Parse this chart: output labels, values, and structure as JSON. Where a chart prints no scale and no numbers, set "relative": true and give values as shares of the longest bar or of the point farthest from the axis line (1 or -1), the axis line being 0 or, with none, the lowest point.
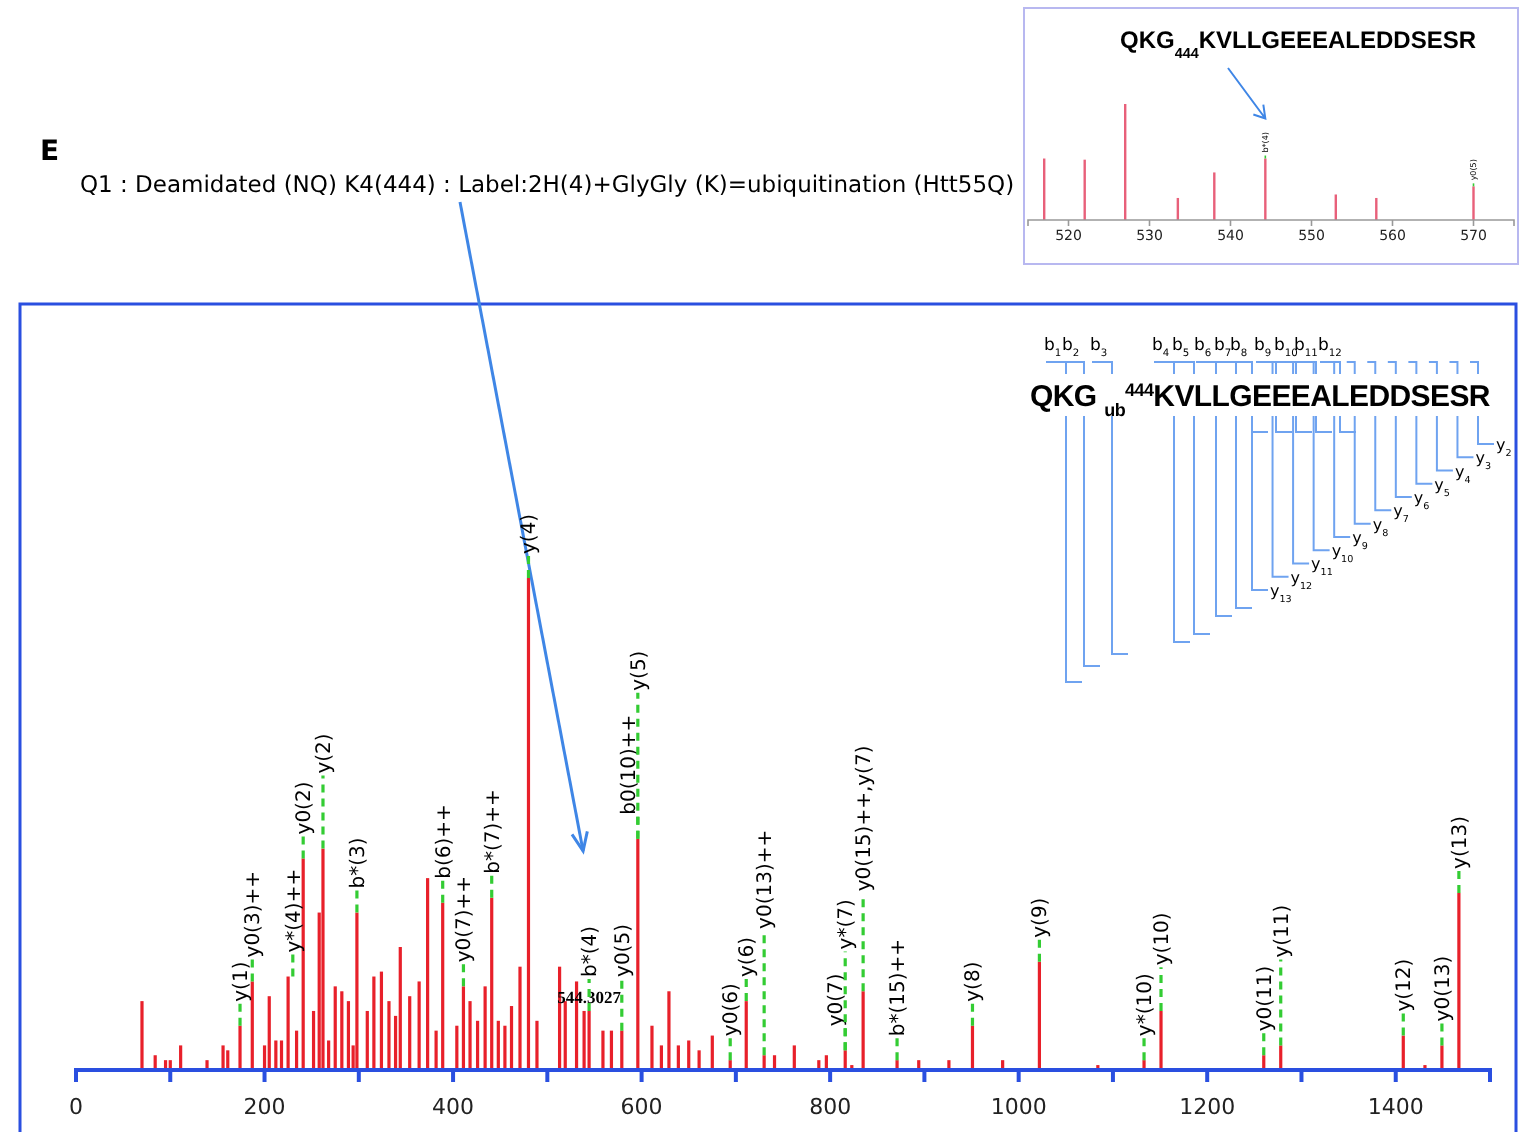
{
  "chart_data": [
    {
      "type": "bar",
      "relative": true,
      "color": "#e8202a",
      "x": [
        70,
        84,
        95,
        100,
        111,
        139,
        156,
        161,
        174,
        187,
        200,
        205,
        212,
        218,
        225,
        234,
        241,
        252,
        258,
        262,
        268,
        275,
        282,
        289,
        294,
        298,
        309,
        316,
        324,
        332,
        339,
        344,
        354,
        364,
        373,
        382,
        389,
        404,
        411,
        418,
        426,
        434,
        441,
        448,
        455,
        462,
        471,
        480,
        489,
        513,
        519,
        531,
        539,
        544.3,
        559,
        568,
        579,
        596,
        611,
        621,
        629,
        639,
        650,
        661,
        675,
        694,
        711,
        730,
        741,
        762,
        788,
        796,
        816,
        823,
        835,
        871,
        894,
        926,
        951,
        983,
        1022,
        1084,
        1133,
        1151,
        1260,
        1278,
        1408,
        1431,
        1449,
        1467
      ],
      "values": [
        0.14,
        0.03,
        0.02,
        0.02,
        0.05,
        0.02,
        0.05,
        0.04,
        0.09,
        0.18,
        0.05,
        0.15,
        0.06,
        0.06,
        0.19,
        0.08,
        0.43,
        0.12,
        0.32,
        0.45,
        0.06,
        0.17,
        0.16,
        0.14,
        0.05,
        0.32,
        0.12,
        0.19,
        0.2,
        0.14,
        0.11,
        0.25,
        0.15,
        0.18,
        0.39,
        0.08,
        0.34,
        0.09,
        0.17,
        0.14,
        0.1,
        0.17,
        0.35,
        0.1,
        0.09,
        0.13,
        0.21,
        1,
        0.1,
        0.21,
        0.14,
        0.18,
        0.12,
        0.12,
        0.08,
        0.08,
        0.08,
        0.47,
        0.09,
        0.05,
        0.16,
        0.05,
        0.06,
        0.04,
        0.07,
        0.02,
        0.14,
        0.03,
        0.03,
        0.05,
        0.02,
        0.03,
        0.04,
        0.01,
        0.16,
        0.02,
        0.02,
        0.02,
        0.09,
        0.02,
        0.22,
        0.01,
        0.02,
        0.12,
        0.03,
        0.05,
        0.07,
        0.01,
        0.05,
        0.36
      ],
      "xlim": [
        0,
        1500
      ],
      "xticks": [
        0,
        {
          "value": 100,
          "label": null
        },
        200,
        {
          "value": 300,
          "label": null
        },
        400,
        {
          "value": 500,
          "label": null
        },
        600,
        {
          "value": 700,
          "label": null
        },
        800,
        {
          "value": 900,
          "label": null
        },
        1000,
        {
          "value": 1100,
          "label": null
        },
        1200,
        {
          "value": 1300,
          "label": null
        },
        1400,
        {
          "value": 1500,
          "label": null
        }
      ],
      "annotations": [
        "E",
        "Q1 : Deamidated (NQ) K4(444) : Label:2H(4)+GlyGly (K)=ubiquitination (Htt55Q)",
        "QKG $_{ub}$$^{444}$KVLLGEEEALEDDSESR",
        "b$_{1}$",
        "b$_{2}$",
        "b$_{3}$",
        "b$_{4}$",
        "b$_{5}$",
        "b$_{6}$",
        "b$_{7}$",
        "b$_{8}$",
        "b$_{9}$",
        "b$_{10}$",
        "b$_{11}$",
        "b$_{12}$",
        "y$_{2}$",
        "y$_{3}$",
        "y$_{4}$",
        "y$_{5}$",
        "y$_{6}$",
        "y$_{7}$",
        "y$_{8}$",
        "y$_{9}$",
        "y$_{10}$",
        "y$_{11}$",
        "y$_{12}$",
        "y$_{13}$",
        {
          "text": "544.3027",
          "x": 544.3,
          "y": 0.12
        },
        {
          "text": "y(1)",
          "x": 174,
          "y": 0.09
        },
        {
          "text": "y0(3)++",
          "x": 187,
          "y": 0.18
        },
        {
          "text": "y*(4)++",
          "x": 230,
          "y": 0.19
        },
        {
          "text": "y0(2)",
          "x": 241,
          "y": 0.43
        },
        {
          "text": "y(2)",
          "x": 262,
          "y": 0.45
        },
        {
          "text": "b*(3)",
          "x": 298,
          "y": 0.32
        },
        {
          "text": "b(6)++",
          "x": 389,
          "y": 0.34
        },
        {
          "text": "y0(7)++",
          "x": 411,
          "y": 0.17
        },
        {
          "text": "b*(7)++",
          "x": 441,
          "y": 0.35
        },
        {
          "text": "y(4)",
          "x": 480,
          "y": 1
        },
        {
          "text": "b*(4)",
          "x": 544.3,
          "y": 0.12
        },
        {
          "text": "y0(5)",
          "x": 579,
          "y": 0.08
        },
        {
          "text": "b0(10)++",
          "x": 596,
          "y": 0.47
        },
        {
          "text": "y(5)",
          "x": 596,
          "y": 0.47
        },
        {
          "text": "y0(6)",
          "x": 694,
          "y": 0.02
        },
        {
          "text": "y(6)",
          "x": 711,
          "y": 0.14
        },
        {
          "text": "y0(13)++",
          "x": 730,
          "y": 0.03
        },
        {
          "text": "y0(7)",
          "x": 816,
          "y": 0.04
        },
        {
          "text": "y*(7)",
          "x": 816,
          "y": 0.04
        },
        {
          "text": "y0(15)++,y(7)",
          "x": 835,
          "y": 0.16
        },
        {
          "text": "b*(15)++",
          "x": 871,
          "y": 0.02
        },
        {
          "text": "y(8)",
          "x": 951,
          "y": 0.09
        },
        {
          "text": "y(9)",
          "x": 1022,
          "y": 0.22
        },
        {
          "text": "y*(10)",
          "x": 1133,
          "y": 0.02
        },
        {
          "text": "y(10)",
          "x": 1151,
          "y": 0.12
        },
        {
          "text": "y0(11)",
          "x": 1260,
          "y": 0.03
        },
        {
          "text": "y(11)",
          "x": 1278,
          "y": 0.05
        },
        {
          "text": "y(12)",
          "x": 1408,
          "y": 0.07
        },
        {
          "text": "y0(13)",
          "x": 1449,
          "y": 0.05
        },
        {
          "text": "y(13)",
          "x": 1467,
          "y": 0.36
        }
      ]
    },
    {
      "type": "bar",
      "relative": true,
      "color": "#e8607a",
      "x": [
        517,
        522,
        527,
        533.5,
        538,
        544.3,
        553,
        558,
        570
      ],
      "values": [
        0.53,
        0.52,
        1,
        0.19,
        0.41,
        0.53,
        0.22,
        0.19,
        0.29
      ],
      "xlim": [
        515,
        575
      ],
      "xticks": [
        520,
        530,
        540,
        550,
        560,
        570
      ],
      "annotations": [
        "QKG$_{444}$KVLLGEEEALEDDSESR",
        {
          "text": "b*(4)",
          "x": 544.3,
          "y": 0.53
        },
        {
          "text": "y0(5)",
          "x": 570,
          "y": 0.29
        }
      ]
    }
  ]
}
